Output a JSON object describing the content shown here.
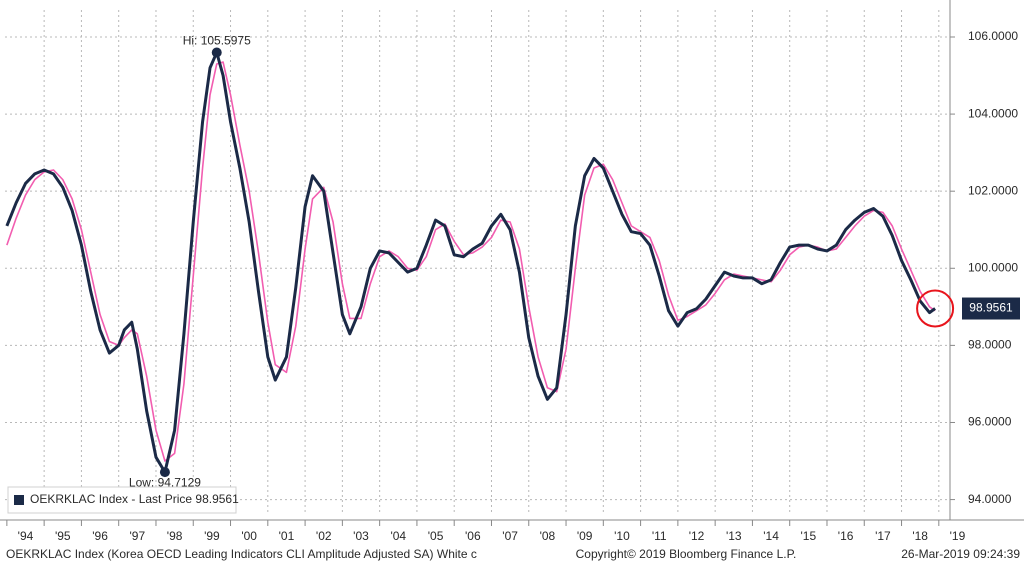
{
  "chart_data": {
    "type": "line",
    "x": [
      1994.0,
      1994.25,
      1994.5,
      1994.75,
      1995.0,
      1995.25,
      1995.5,
      1995.75,
      1996.0,
      1996.25,
      1996.5,
      1996.75,
      1997.0,
      1997.15,
      1997.35,
      1997.5,
      1997.75,
      1998.0,
      1998.24,
      1998.5,
      1998.75,
      1999.0,
      1999.25,
      1999.45,
      1999.63,
      1999.8,
      2000.0,
      2000.25,
      2000.5,
      2000.75,
      2001.0,
      2001.2,
      2001.5,
      2001.75,
      2002.0,
      2002.2,
      2002.5,
      2002.75,
      2003.0,
      2003.2,
      2003.5,
      2003.75,
      2004.0,
      2004.25,
      2004.5,
      2004.75,
      2005.0,
      2005.25,
      2005.5,
      2005.75,
      2006.0,
      2006.25,
      2006.5,
      2006.75,
      2007.0,
      2007.25,
      2007.5,
      2007.75,
      2008.0,
      2008.25,
      2008.5,
      2008.75,
      2009.0,
      2009.25,
      2009.5,
      2009.75,
      2010.0,
      2010.25,
      2010.5,
      2010.75,
      2011.0,
      2011.25,
      2011.5,
      2011.75,
      2012.0,
      2012.25,
      2012.5,
      2012.75,
      2013.0,
      2013.25,
      2013.5,
      2013.75,
      2014.0,
      2014.25,
      2014.5,
      2014.75,
      2015.0,
      2015.25,
      2015.5,
      2015.75,
      2016.0,
      2016.25,
      2016.5,
      2016.75,
      2017.0,
      2017.25,
      2017.5,
      2017.75,
      2018.0,
      2018.25,
      2018.5,
      2018.75,
      2018.9
    ],
    "series": [
      {
        "name": "OEKRKLAC Index - Last Price 98.9561",
        "color": "#1b2a47",
        "values": [
          101.1,
          101.7,
          102.2,
          102.45,
          102.55,
          102.45,
          102.1,
          101.5,
          100.6,
          99.4,
          98.4,
          97.8,
          98.0,
          98.4,
          98.6,
          97.9,
          96.3,
          95.1,
          94.7129,
          95.8,
          98.3,
          101.2,
          103.8,
          105.2,
          105.5975,
          105.0,
          103.8,
          102.6,
          101.2,
          99.4,
          97.7,
          97.1,
          97.7,
          99.5,
          101.6,
          102.4,
          102.0,
          100.4,
          98.8,
          98.3,
          99.0,
          100.0,
          100.45,
          100.4,
          100.15,
          99.9,
          100.0,
          100.6,
          101.25,
          101.1,
          100.35,
          100.3,
          100.5,
          100.65,
          101.1,
          101.4,
          101.0,
          99.9,
          98.2,
          97.2,
          96.6,
          96.9,
          98.8,
          101.1,
          102.4,
          102.85,
          102.6,
          102.0,
          101.4,
          100.95,
          100.9,
          100.6,
          99.8,
          98.9,
          98.5,
          98.85,
          98.95,
          99.2,
          99.55,
          99.9,
          99.8,
          99.75,
          99.75,
          99.6,
          99.7,
          100.15,
          100.55,
          100.6,
          100.6,
          100.5,
          100.45,
          100.6,
          101.0,
          101.25,
          101.45,
          101.55,
          101.35,
          100.85,
          100.2,
          99.7,
          99.15,
          98.85,
          98.9561
        ]
      },
      {
        "color": "#f25db0",
        "values": [
          100.6,
          101.3,
          101.9,
          102.3,
          102.5,
          102.55,
          102.3,
          101.8,
          101.0,
          99.9,
          98.8,
          98.1,
          98.0,
          98.2,
          98.4,
          98.3,
          97.2,
          95.8,
          95.0,
          95.2,
          97.0,
          99.8,
          102.6,
          104.5,
          105.3,
          105.35,
          104.5,
          103.2,
          102.0,
          100.4,
          98.6,
          97.5,
          97.3,
          98.5,
          100.5,
          101.8,
          102.1,
          101.2,
          99.6,
          98.7,
          98.7,
          99.6,
          100.3,
          100.45,
          100.3,
          100.0,
          99.95,
          100.3,
          101.0,
          101.15,
          100.7,
          100.35,
          100.4,
          100.55,
          100.8,
          101.25,
          101.2,
          100.5,
          99.0,
          97.7,
          96.9,
          96.8,
          97.9,
          100.0,
          101.9,
          102.6,
          102.7,
          102.3,
          101.7,
          101.1,
          100.95,
          100.8,
          100.2,
          99.3,
          98.65,
          98.75,
          98.9,
          99.05,
          99.35,
          99.7,
          99.85,
          99.8,
          99.75,
          99.7,
          99.65,
          99.95,
          100.35,
          100.55,
          100.6,
          100.55,
          100.45,
          100.5,
          100.8,
          101.1,
          101.35,
          101.5,
          101.45,
          101.1,
          100.5,
          99.95,
          99.4,
          99.0,
          98.9
        ]
      }
    ],
    "xlim": [
      1993.95,
      2019.3
    ],
    "ylim": [
      93.6,
      106.7
    ],
    "xticks": [
      {
        "value": 1994,
        "label": "'94"
      },
      {
        "value": 1995,
        "label": "'95"
      },
      {
        "value": 1996,
        "label": "'96"
      },
      {
        "value": 1997,
        "label": "'97"
      },
      {
        "value": 1998,
        "label": "'98"
      },
      {
        "value": 1999,
        "label": "'99"
      },
      {
        "value": 2000,
        "label": "'00"
      },
      {
        "value": 2001,
        "label": "'01"
      },
      {
        "value": 2002,
        "label": "'02"
      },
      {
        "value": 2003,
        "label": "'03"
      },
      {
        "value": 2004,
        "label": "'04"
      },
      {
        "value": 2005,
        "label": "'05"
      },
      {
        "value": 2006,
        "label": "'06"
      },
      {
        "value": 2007,
        "label": "'07"
      },
      {
        "value": 2008,
        "label": "'08"
      },
      {
        "value": 2009,
        "label": "'09"
      },
      {
        "value": 2010,
        "label": "'10"
      },
      {
        "value": 2011,
        "label": "'11"
      },
      {
        "value": 2012,
        "label": "'12"
      },
      {
        "value": 2013,
        "label": "'13"
      },
      {
        "value": 2014,
        "label": "'14"
      },
      {
        "value": 2015,
        "label": "'15"
      },
      {
        "value": 2016,
        "label": "'16"
      },
      {
        "value": 2017,
        "label": "'17"
      },
      {
        "value": 2018,
        "label": "'18"
      },
      {
        "value": 2019,
        "label": "'19"
      }
    ],
    "yticks": [
      {
        "value": 94,
        "label": "94.0000"
      },
      {
        "value": 96,
        "label": "96.0000"
      },
      {
        "value": 98,
        "label": "98.0000"
      },
      {
        "value": 100,
        "label": "100.0000"
      },
      {
        "value": 102,
        "label": "102.0000"
      },
      {
        "value": 104,
        "label": "104.0000"
      },
      {
        "value": 106,
        "label": "106.0000"
      }
    ],
    "grid": true,
    "legend": "bottom-left",
    "annotations": [
      {
        "text": "Hi: 105.5975",
        "x": 1999.63,
        "y": 105.5975
      },
      {
        "text": "Low: 94.7129",
        "x": 1998.24,
        "y": 94.7129
      }
    ],
    "last_price": 98.9561,
    "footer": {
      "left": "OEKRKLAC Index (Korea OECD Leading Indicators CLI Amplitude Adjusted SA) White c",
      "center": "Copyright© 2019 Bloomberg Finance L.P.",
      "right": "26-Mar-2019 09:24:39"
    }
  }
}
